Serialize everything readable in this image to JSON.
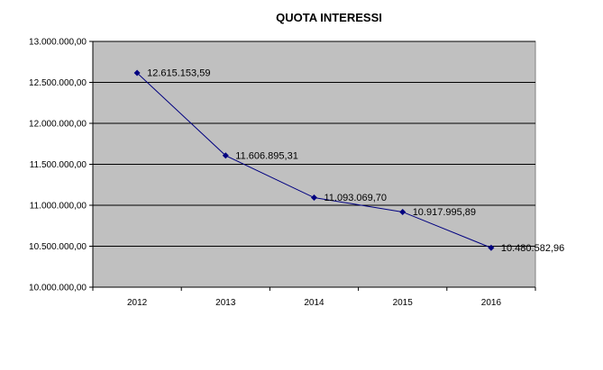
{
  "chart_data": {
    "type": "line",
    "title": "QUOTA INTERESSI",
    "xlabel": "",
    "ylabel": "",
    "categories": [
      "2012",
      "2013",
      "2014",
      "2015",
      "2016"
    ],
    "series": [
      {
        "values": [
          12615153.59,
          11606895.31,
          11093069.7,
          10917995.89,
          10480582.96
        ],
        "labels": [
          "12.615.153,59",
          "11.606.895,31",
          "11.093.069,70",
          "10.917.995,89",
          "10.480.582,96"
        ],
        "color": "#000080"
      }
    ],
    "ylim": [
      10000000,
      13000000
    ],
    "yticks": [
      10000000,
      10500000,
      11000000,
      11500000,
      12000000,
      12500000,
      13000000
    ],
    "ytick_labels": [
      "10.000.000,00",
      "10.500.000,00",
      "11.000.000,00",
      "11.500.000,00",
      "12.000.000,00",
      "12.500.000,00",
      "13.000.000,00"
    ],
    "grid": true,
    "legend": "none",
    "colors": {
      "plot_background": "#c0c0c0",
      "gridline": "#000000",
      "axis": "#000000",
      "line": "#000080"
    }
  }
}
